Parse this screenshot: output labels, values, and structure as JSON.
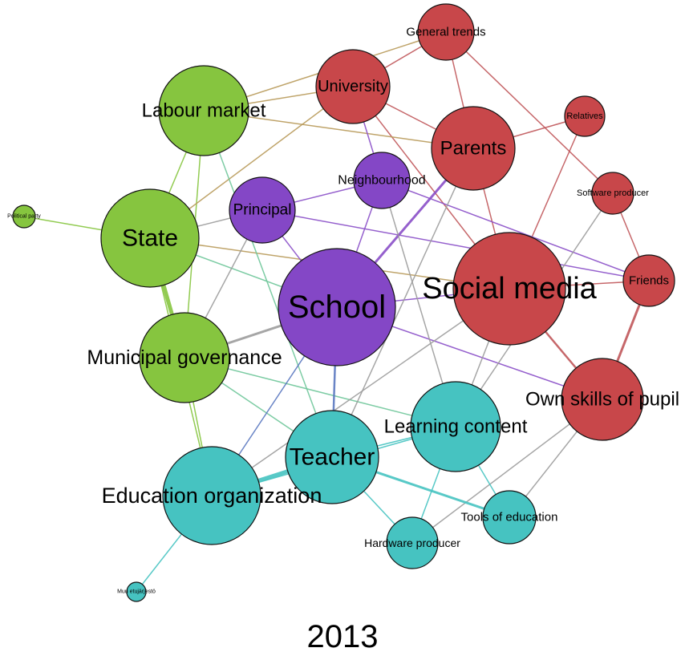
{
  "caption": "2013",
  "colors": {
    "red": "#c8474a",
    "green": "#86c53f",
    "purple": "#8447c6",
    "teal": "#46c3c1"
  },
  "nodes": [
    {
      "id": "school",
      "label": "School",
      "group": "purple"
    },
    {
      "id": "principal",
      "label": "Principal",
      "group": "purple"
    },
    {
      "id": "neighbourhood",
      "label": "Neighbourhood",
      "group": "purple"
    },
    {
      "id": "social_media",
      "label": "Social media",
      "group": "red"
    },
    {
      "id": "parents",
      "label": "Parents",
      "group": "red"
    },
    {
      "id": "university",
      "label": "University",
      "group": "red"
    },
    {
      "id": "general_trends",
      "label": "General trends",
      "group": "red"
    },
    {
      "id": "relatives",
      "label": "Relatives",
      "group": "red"
    },
    {
      "id": "software_producer",
      "label": "Software producer",
      "group": "red"
    },
    {
      "id": "friends",
      "label": "Friends",
      "group": "red"
    },
    {
      "id": "own_skills",
      "label": "Own skills of pupil",
      "group": "red"
    },
    {
      "id": "labour_market",
      "label": "Labour market",
      "group": "green"
    },
    {
      "id": "state",
      "label": "State",
      "group": "green"
    },
    {
      "id": "municipal",
      "label": "Municipal governance",
      "group": "green"
    },
    {
      "id": "political_party",
      "label": "Political party",
      "group": "green"
    },
    {
      "id": "teacher",
      "label": "Teacher",
      "group": "teal"
    },
    {
      "id": "learning_content",
      "label": "Learning content",
      "group": "teal"
    },
    {
      "id": "education_org",
      "label": "Education organization",
      "group": "teal"
    },
    {
      "id": "tools",
      "label": "Tools of education",
      "group": "teal"
    },
    {
      "id": "hardware",
      "label": "Hardware producer",
      "group": "teal"
    },
    {
      "id": "muu",
      "label": "Muu etujärjestö",
      "group": "teal"
    }
  ],
  "edges": [
    {
      "source": "university",
      "target": "general_trends",
      "color": "red"
    },
    {
      "source": "university",
      "target": "parents",
      "color": "red"
    },
    {
      "source": "university",
      "target": "social_media",
      "color": "red"
    },
    {
      "source": "general_trends",
      "target": "parents",
      "color": "red"
    },
    {
      "source": "general_trends",
      "target": "software_producer",
      "color": "red"
    },
    {
      "source": "parents",
      "target": "relatives",
      "color": "red"
    },
    {
      "source": "parents",
      "target": "social_media",
      "color": "red"
    },
    {
      "source": "relatives",
      "target": "social_media",
      "color": "red"
    },
    {
      "source": "software_producer",
      "target": "friends",
      "color": "red"
    },
    {
      "source": "social_media",
      "target": "friends",
      "color": "red"
    },
    {
      "source": "social_media",
      "target": "own_skills",
      "color": "red"
    },
    {
      "source": "friends",
      "target": "own_skills",
      "color": "red"
    },
    {
      "source": "labour_market",
      "target": "university",
      "color": "olive"
    },
    {
      "source": "labour_market",
      "target": "general_trends",
      "color": "olive"
    },
    {
      "source": "labour_market",
      "target": "parents",
      "color": "olive"
    },
    {
      "source": "state",
      "target": "labour_market",
      "color": "green"
    },
    {
      "source": "state",
      "target": "municipal",
      "color": "green"
    },
    {
      "source": "labour_market",
      "target": "municipal",
      "color": "green"
    },
    {
      "source": "state",
      "target": "political_party",
      "color": "green"
    },
    {
      "source": "state",
      "target": "university",
      "color": "olive"
    },
    {
      "source": "state",
      "target": "social_media",
      "color": "olive"
    },
    {
      "source": "municipal",
      "target": "education_org",
      "color": "green"
    },
    {
      "source": "state",
      "target": "education_org",
      "color": "green"
    },
    {
      "source": "labour_market",
      "target": "teacher",
      "color": "tealgreen"
    },
    {
      "source": "state",
      "target": "school",
      "color": "tealgreen"
    },
    {
      "source": "municipal",
      "target": "teacher",
      "color": "tealgreen"
    },
    {
      "source": "municipal",
      "target": "learning_content",
      "color": "tealgreen"
    },
    {
      "source": "principal",
      "target": "neighbourhood",
      "color": "purple"
    },
    {
      "source": "principal",
      "target": "school",
      "color": "purple"
    },
    {
      "source": "neighbourhood",
      "target": "school",
      "color": "purple"
    },
    {
      "source": "university",
      "target": "neighbourhood",
      "color": "purple"
    },
    {
      "source": "school",
      "target": "parents",
      "color": "purple"
    },
    {
      "source": "school",
      "target": "social_media",
      "color": "purple"
    },
    {
      "source": "school",
      "target": "own_skills",
      "color": "purple"
    },
    {
      "source": "neighbourhood",
      "target": "friends",
      "color": "purple"
    },
    {
      "source": "principal",
      "target": "friends",
      "color": "purple"
    },
    {
      "source": "school",
      "target": "municipal",
      "color": "gray"
    },
    {
      "source": "principal",
      "target": "municipal",
      "color": "gray"
    },
    {
      "source": "principal",
      "target": "state",
      "color": "gray"
    },
    {
      "source": "neighbourhood",
      "target": "learning_content",
      "color": "gray"
    },
    {
      "source": "parents",
      "target": "teacher",
      "color": "gray"
    },
    {
      "source": "social_media",
      "target": "learning_content",
      "color": "gray"
    },
    {
      "source": "social_media",
      "target": "education_org",
      "color": "gray"
    },
    {
      "source": "software_producer",
      "target": "learning_content",
      "color": "gray"
    },
    {
      "source": "own_skills",
      "target": "hardware",
      "color": "gray"
    },
    {
      "source": "own_skills",
      "target": "tools",
      "color": "gray"
    },
    {
      "source": "school",
      "target": "teacher",
      "color": "blue"
    },
    {
      "source": "school",
      "target": "education_org",
      "color": "blue"
    },
    {
      "source": "teacher",
      "target": "education_org",
      "color": "teal"
    },
    {
      "source": "teacher",
      "target": "learning_content",
      "color": "teal"
    },
    {
      "source": "teacher",
      "target": "tools",
      "color": "teal"
    },
    {
      "source": "teacher",
      "target": "hardware",
      "color": "teal"
    },
    {
      "source": "learning_content",
      "target": "tools",
      "color": "teal"
    },
    {
      "source": "learning_content",
      "target": "hardware",
      "color": "teal"
    },
    {
      "source": "learning_content",
      "target": "education_org",
      "color": "teal"
    },
    {
      "source": "education_org",
      "target": "muu",
      "color": "teal"
    }
  ]
}
